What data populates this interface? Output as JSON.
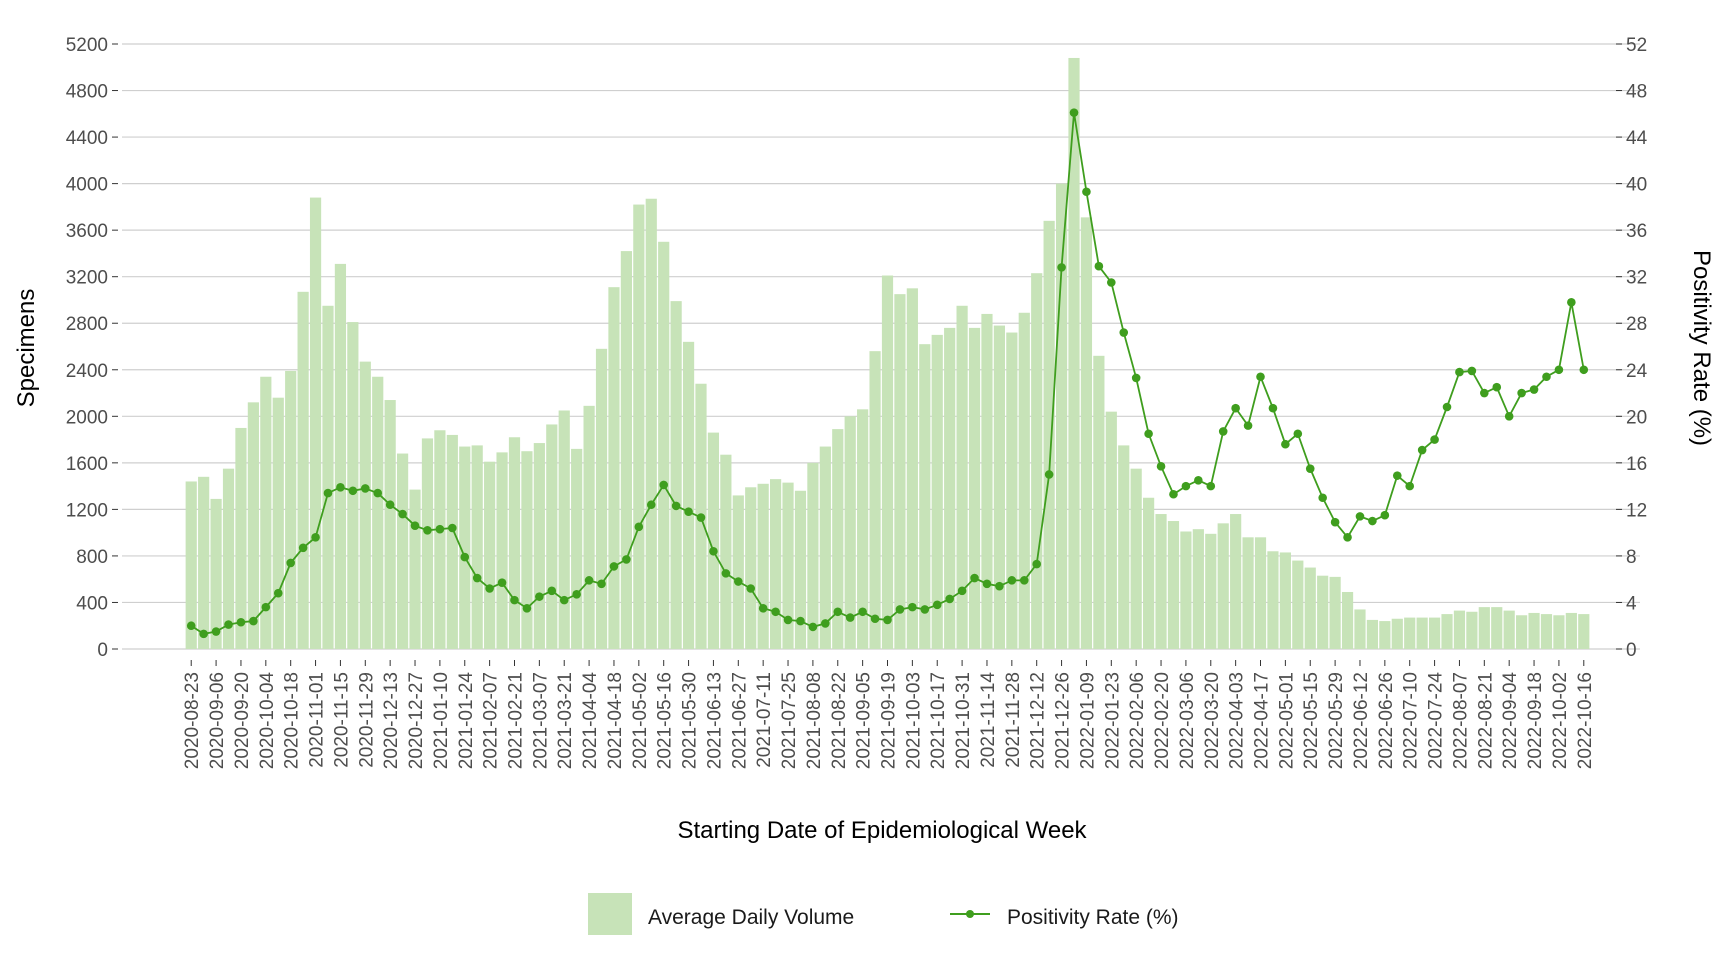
{
  "chart_data": {
    "type": "bar+line",
    "title": "",
    "xlabel": "Starting Date of Epidemiological Week",
    "ylabel_left": "Specimens",
    "ylabel_right": "Positivity Rate (%)",
    "ylim_left": [
      0,
      5200
    ],
    "ylim_right": [
      0,
      52
    ],
    "yticks_left": [
      0,
      400,
      800,
      1200,
      1600,
      2000,
      2400,
      2800,
      3200,
      3600,
      4000,
      4400,
      4800,
      5200
    ],
    "yticks_right": [
      0,
      4,
      8,
      12,
      16,
      20,
      24,
      28,
      32,
      36,
      40,
      44,
      48,
      52
    ],
    "grid": "horizontal",
    "legend_position": "bottom",
    "colors": {
      "bar": "#c7e3b8",
      "line": "#3f9e1e",
      "grid": "#cfcfcf",
      "tick_text": "#4d4d4d"
    },
    "x": [
      "2020-08-23",
      "2020-08-30",
      "2020-09-06",
      "2020-09-13",
      "2020-09-20",
      "2020-09-27",
      "2020-10-04",
      "2020-10-11",
      "2020-10-18",
      "2020-10-25",
      "2020-11-01",
      "2020-11-08",
      "2020-11-15",
      "2020-11-22",
      "2020-11-29",
      "2020-12-06",
      "2020-12-13",
      "2020-12-20",
      "2020-12-27",
      "2021-01-03",
      "2021-01-10",
      "2021-01-17",
      "2021-01-24",
      "2021-01-31",
      "2021-02-07",
      "2021-02-14",
      "2021-02-21",
      "2021-02-28",
      "2021-03-07",
      "2021-03-14",
      "2021-03-21",
      "2021-03-28",
      "2021-04-04",
      "2021-04-11",
      "2021-04-18",
      "2021-04-25",
      "2021-05-02",
      "2021-05-09",
      "2021-05-16",
      "2021-05-23",
      "2021-05-30",
      "2021-06-06",
      "2021-06-13",
      "2021-06-20",
      "2021-06-27",
      "2021-07-04",
      "2021-07-11",
      "2021-07-18",
      "2021-07-25",
      "2021-08-01",
      "2021-08-08",
      "2021-08-15",
      "2021-08-22",
      "2021-08-29",
      "2021-09-05",
      "2021-09-12",
      "2021-09-19",
      "2021-09-26",
      "2021-10-03",
      "2021-10-10",
      "2021-10-17",
      "2021-10-24",
      "2021-10-31",
      "2021-11-07",
      "2021-11-14",
      "2021-11-21",
      "2021-11-28",
      "2021-12-05",
      "2021-12-12",
      "2021-12-19",
      "2021-12-26",
      "2022-01-02",
      "2022-01-09",
      "2022-01-16",
      "2022-01-23",
      "2022-01-30",
      "2022-02-06",
      "2022-02-13",
      "2022-02-20",
      "2022-02-27",
      "2022-03-06",
      "2022-03-13",
      "2022-03-20",
      "2022-03-27",
      "2022-04-03",
      "2022-04-10",
      "2022-04-17",
      "2022-04-24",
      "2022-05-01",
      "2022-05-08",
      "2022-05-15",
      "2022-05-22",
      "2022-05-29",
      "2022-06-05",
      "2022-06-12",
      "2022-06-19",
      "2022-06-26",
      "2022-07-03",
      "2022-07-10",
      "2022-07-17",
      "2022-07-24",
      "2022-07-31",
      "2022-08-07",
      "2022-08-14",
      "2022-08-21",
      "2022-08-28",
      "2022-09-04",
      "2022-09-11",
      "2022-09-18",
      "2022-09-25",
      "2022-10-02",
      "2022-10-09",
      "2022-10-16"
    ],
    "x_tick_labels": [
      "2020-08-23",
      "2020-09-06",
      "2020-09-20",
      "2020-10-04",
      "2020-10-18",
      "2020-11-01",
      "2020-11-15",
      "2020-11-29",
      "2020-12-13",
      "2020-12-27",
      "2021-01-10",
      "2021-01-24",
      "2021-02-07",
      "2021-02-21",
      "2021-03-07",
      "2021-03-21",
      "2021-04-04",
      "2021-04-18",
      "2021-05-02",
      "2021-05-16",
      "2021-05-30",
      "2021-06-13",
      "2021-06-27",
      "2021-07-11",
      "2021-07-25",
      "2021-08-08",
      "2021-08-22",
      "2021-09-05",
      "2021-09-19",
      "2021-10-03",
      "2021-10-17",
      "2021-10-31",
      "2021-11-14",
      "2021-11-28",
      "2021-12-12",
      "2021-12-26",
      "2022-01-09",
      "2022-01-23",
      "2022-02-06",
      "2022-02-20",
      "2022-03-06",
      "2022-03-20",
      "2022-04-03",
      "2022-04-17",
      "2022-05-01",
      "2022-05-15",
      "2022-05-29",
      "2022-06-12",
      "2022-06-26",
      "2022-07-10",
      "2022-07-24",
      "2022-08-07",
      "2022-08-21",
      "2022-09-04",
      "2022-09-18",
      "2022-10-02",
      "2022-10-16"
    ],
    "series": [
      {
        "name": "Average Daily Volume",
        "type": "bar",
        "axis": "left",
        "values": [
          1440,
          1480,
          1290,
          1550,
          1900,
          2120,
          2340,
          2160,
          2390,
          3070,
          3880,
          2950,
          3310,
          2810,
          2470,
          2340,
          2140,
          1680,
          1370,
          1810,
          1880,
          1840,
          1740,
          1750,
          1610,
          1690,
          1820,
          1700,
          1770,
          1930,
          2050,
          1720,
          2090,
          2580,
          3110,
          3420,
          3820,
          3870,
          3500,
          2990,
          2640,
          2280,
          1860,
          1670,
          1320,
          1390,
          1420,
          1460,
          1430,
          1360,
          1600,
          1740,
          1890,
          2000,
          2060,
          2560,
          3210,
          3050,
          3100,
          2620,
          2700,
          2760,
          2950,
          2760,
          2880,
          2780,
          2720,
          2890,
          3230,
          3680,
          4000,
          5080,
          3710,
          2520,
          2040,
          1750,
          1550,
          1300,
          1160,
          1100,
          1010,
          1030,
          990,
          1080,
          1160,
          960,
          960,
          840,
          830,
          760,
          700,
          630,
          620,
          490,
          340,
          250,
          240,
          260,
          270,
          270,
          270,
          300,
          330,
          320,
          360,
          360,
          330,
          290,
          310,
          300,
          290,
          310,
          300
        ]
      },
      {
        "name": "Positivity Rate (%)",
        "type": "line",
        "axis": "right",
        "values": [
          2.0,
          1.3,
          1.5,
          2.1,
          2.3,
          2.4,
          3.6,
          4.8,
          7.4,
          8.7,
          9.6,
          13.4,
          13.9,
          13.6,
          13.8,
          13.4,
          12.4,
          11.6,
          10.6,
          10.2,
          10.3,
          10.4,
          7.9,
          6.1,
          5.2,
          5.7,
          4.2,
          3.5,
          4.5,
          5.0,
          4.2,
          4.7,
          5.9,
          5.6,
          7.1,
          7.7,
          10.5,
          12.4,
          14.1,
          12.3,
          11.8,
          11.3,
          8.4,
          6.5,
          5.8,
          5.2,
          3.5,
          3.2,
          2.5,
          2.4,
          1.9,
          2.2,
          3.2,
          2.7,
          3.2,
          2.6,
          2.5,
          3.4,
          3.6,
          3.4,
          3.8,
          4.3,
          5.0,
          6.1,
          5.6,
          5.4,
          5.9,
          5.9,
          7.3,
          15.0,
          32.8,
          46.1,
          39.3,
          32.9,
          31.5,
          27.2,
          23.3,
          18.5,
          15.7,
          13.3,
          14.0,
          14.5,
          14.0,
          18.7,
          20.7,
          19.2,
          23.4,
          20.7,
          17.6,
          18.5,
          15.5,
          13.0,
          10.9,
          9.6,
          11.4,
          11.0,
          11.5,
          14.9,
          14.0,
          17.1,
          18.0,
          20.8,
          23.8,
          23.9,
          22.0,
          22.5,
          20.0,
          22.0,
          22.3,
          23.4,
          24.0,
          29.8,
          24.0
        ]
      }
    ]
  }
}
